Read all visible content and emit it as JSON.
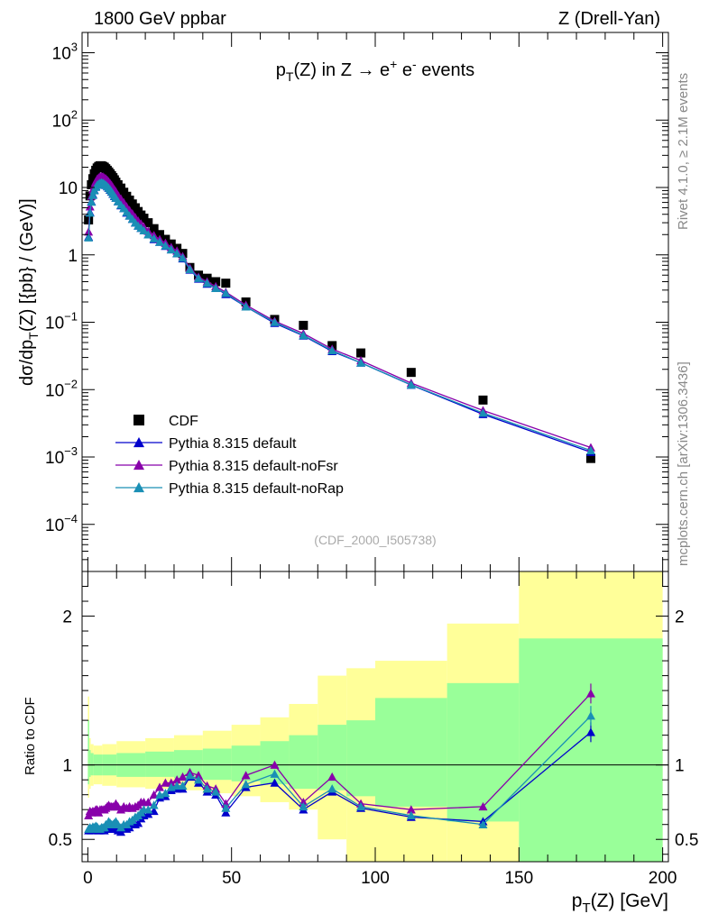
{
  "header": {
    "left": "1800 GeV ppbar",
    "right": "Z (Drell-Yan)"
  },
  "side_labels": {
    "rivet": "Rivet 4.1.0, ≥ 2.1M events",
    "mcplots": "mcplots.cern.ch [arXiv:1306.3436]"
  },
  "chart_data": {
    "type": "scatter",
    "title": "p_T(Z) in Z → e+ e- events",
    "analysis_id": "(CDF_2000_I505738)",
    "xlabel": "p_T(Z) [GeV]",
    "ylabel": "dσ/dp_T(Z) [{pb} / (GeV)]",
    "ratio_ylabel": "Ratio to CDF",
    "xlim": [
      -2,
      202
    ],
    "ylim_log": [
      2e-05,
      2000
    ],
    "ratio_ylim": [
      0.35,
      2.3
    ],
    "x_ticks": [
      0,
      50,
      100,
      150,
      200
    ],
    "y_ticks": [
      {
        "value": 1000,
        "base": "10",
        "exp": "3"
      },
      {
        "value": 100,
        "base": "10",
        "exp": "2"
      },
      {
        "value": 10,
        "base": "10",
        "exp": ""
      },
      {
        "value": 1,
        "base": "1",
        "exp": ""
      },
      {
        "value": 0.1,
        "base": "10",
        "exp": "−1"
      },
      {
        "value": 0.01,
        "base": "10",
        "exp": "−2"
      },
      {
        "value": 0.001,
        "base": "10",
        "exp": "−3"
      },
      {
        "value": 0.0001,
        "base": "10",
        "exp": "−4"
      }
    ],
    "ratio_ticks": [
      0.5,
      1,
      2
    ],
    "x": [
      0.25,
      0.75,
      1.25,
      1.75,
      2.25,
      2.75,
      3.25,
      3.75,
      4.25,
      4.75,
      5.25,
      5.75,
      6.25,
      6.75,
      7.25,
      7.75,
      8.25,
      8.75,
      9.25,
      9.75,
      10.5,
      11.5,
      12.5,
      13.5,
      14.5,
      15.5,
      16.5,
      17.5,
      18.5,
      19.5,
      21,
      23,
      25,
      27,
      29,
      31,
      33,
      35.5,
      38.5,
      41.5,
      44.5,
      48,
      55,
      65,
      75,
      85,
      95,
      112.5,
      137.5,
      175
    ],
    "series": [
      {
        "name": "CDF",
        "color": "#000000",
        "marker": "square",
        "values": [
          3.3,
          7.5,
          11,
          13.5,
          16,
          18,
          19.5,
          20.5,
          21,
          21,
          20.5,
          20,
          19,
          18,
          17,
          16,
          15,
          14,
          13,
          12,
          11,
          9.8,
          8.5,
          7.4,
          6.5,
          5.7,
          5.0,
          4.4,
          3.9,
          3.5,
          3.0,
          2.45,
          2.0,
          1.7,
          1.45,
          1.25,
          1.05,
          0.65,
          0.5,
          0.45,
          0.4,
          0.38,
          0.2,
          0.11,
          0.09,
          0.045,
          0.035,
          0.018,
          0.007,
          0.00095
        ]
      },
      {
        "name": "Pythia 8.315 default",
        "color": "#0000cc",
        "marker": "triangle",
        "values": [
          1.85,
          4.3,
          6.2,
          7.9,
          9.2,
          10.4,
          11.2,
          11.5,
          11.8,
          12.0,
          11.7,
          11.2,
          10.8,
          10.3,
          9.8,
          9.2,
          8.6,
          8.0,
          7.4,
          7.0,
          6.2,
          5.4,
          4.9,
          4.2,
          3.8,
          3.4,
          3.0,
          2.7,
          2.5,
          2.3,
          2.0,
          1.7,
          1.55,
          1.35,
          1.2,
          1.05,
          0.88,
          0.6,
          0.44,
          0.37,
          0.32,
          0.26,
          0.17,
          0.097,
          0.063,
          0.037,
          0.025,
          0.0117,
          0.0043,
          0.00118
        ],
        "ratios": [
          0.56,
          0.57,
          0.56,
          0.58,
          0.575,
          0.58,
          0.575,
          0.56,
          0.56,
          0.57,
          0.57,
          0.56,
          0.57,
          0.57,
          0.58,
          0.575,
          0.57,
          0.57,
          0.57,
          0.58,
          0.56,
          0.55,
          0.58,
          0.57,
          0.58,
          0.6,
          0.6,
          0.61,
          0.64,
          0.66,
          0.67,
          0.69,
          0.78,
          0.79,
          0.83,
          0.84,
          0.84,
          0.92,
          0.88,
          0.82,
          0.8,
          0.68,
          0.85,
          0.88,
          0.7,
          0.82,
          0.71,
          0.65,
          0.62,
          1.22
        ]
      },
      {
        "name": "Pythia 8.315 default-noFsr",
        "color": "#8800aa",
        "marker": "triangle",
        "values": [
          2.2,
          5.2,
          7.5,
          9.3,
          10.9,
          12.2,
          13.3,
          14.0,
          14.5,
          14.6,
          14.4,
          14.0,
          13.5,
          12.9,
          12.2,
          11.5,
          10.8,
          10.0,
          9.3,
          8.7,
          7.7,
          6.8,
          6.0,
          5.2,
          4.6,
          4.1,
          3.6,
          3.2,
          2.9,
          2.6,
          2.25,
          1.95,
          1.7,
          1.5,
          1.3,
          1.15,
          0.95,
          0.64,
          0.47,
          0.4,
          0.34,
          0.28,
          0.18,
          0.104,
          0.068,
          0.04,
          0.027,
          0.0125,
          0.0049,
          0.00138
        ],
        "ratios": [
          0.66,
          0.69,
          0.68,
          0.69,
          0.685,
          0.7,
          0.7,
          0.68,
          0.7,
          0.7,
          0.7,
          0.7,
          0.71,
          0.72,
          0.73,
          0.72,
          0.72,
          0.72,
          0.72,
          0.74,
          0.72,
          0.7,
          0.72,
          0.71,
          0.72,
          0.71,
          0.72,
          0.73,
          0.75,
          0.75,
          0.75,
          0.8,
          0.85,
          0.88,
          0.88,
          0.9,
          0.92,
          0.95,
          0.93,
          0.86,
          0.84,
          0.74,
          0.93,
          1.0,
          0.75,
          0.92,
          0.74,
          0.7,
          0.72,
          1.48
        ]
      },
      {
        "name": "Pythia 8.315 default-noRap",
        "color": "#1a8fb5",
        "marker": "triangle",
        "values": [
          1.8,
          4.2,
          6.1,
          7.7,
          9.0,
          10.1,
          10.9,
          11.3,
          11.6,
          11.8,
          11.6,
          11.3,
          10.9,
          10.4,
          9.9,
          9.3,
          8.7,
          8.1,
          7.5,
          7.0,
          6.2,
          5.5,
          4.9,
          4.3,
          3.8,
          3.4,
          3.0,
          2.7,
          2.5,
          2.3,
          2.0,
          1.75,
          1.55,
          1.37,
          1.2,
          1.05,
          0.9,
          0.61,
          0.45,
          0.38,
          0.32,
          0.27,
          0.17,
          0.1,
          0.064,
          0.038,
          0.025,
          0.0118,
          0.0045,
          0.00125
        ],
        "ratios": [
          0.57,
          0.58,
          0.57,
          0.585,
          0.58,
          0.59,
          0.585,
          0.57,
          0.57,
          0.58,
          0.58,
          0.58,
          0.6,
          0.6,
          0.62,
          0.61,
          0.6,
          0.6,
          0.61,
          0.62,
          0.6,
          0.58,
          0.6,
          0.6,
          0.62,
          0.63,
          0.65,
          0.66,
          0.68,
          0.7,
          0.7,
          0.73,
          0.8,
          0.81,
          0.85,
          0.86,
          0.86,
          0.93,
          0.9,
          0.84,
          0.82,
          0.71,
          0.87,
          0.94,
          0.72,
          0.84,
          0.72,
          0.66,
          0.6,
          1.33
        ]
      }
    ],
    "uncertainty_bands": [
      {
        "x0": 0,
        "x1": 0.5,
        "y1_lo": 0.87,
        "y1_hi": 1.3,
        "y2_lo": 0.78,
        "y2_hi": 1.46
      },
      {
        "x0": 0.5,
        "x1": 1,
        "y1_lo": 0.92,
        "y1_hi": 1.1,
        "y2_lo": 0.84,
        "y2_hi": 1.18
      },
      {
        "x0": 1,
        "x1": 2,
        "y1_lo": 0.93,
        "y1_hi": 1.08,
        "y2_lo": 0.86,
        "y2_hi": 1.14
      },
      {
        "x0": 2,
        "x1": 5,
        "y1_lo": 0.93,
        "y1_hi": 1.07,
        "y2_lo": 0.87,
        "y2_hi": 1.13
      },
      {
        "x0": 5,
        "x1": 10,
        "y1_lo": 0.93,
        "y1_hi": 1.07,
        "y2_lo": 0.86,
        "y2_hi": 1.14
      },
      {
        "x0": 10,
        "x1": 20,
        "y1_lo": 0.92,
        "y1_hi": 1.08,
        "y2_lo": 0.85,
        "y2_hi": 1.16
      },
      {
        "x0": 20,
        "x1": 30,
        "y1_lo": 0.92,
        "y1_hi": 1.09,
        "y2_lo": 0.84,
        "y2_hi": 1.18
      },
      {
        "x0": 30,
        "x1": 40,
        "y1_lo": 0.91,
        "y1_hi": 1.1,
        "y2_lo": 0.83,
        "y2_hi": 1.2
      },
      {
        "x0": 40,
        "x1": 50,
        "y1_lo": 0.9,
        "y1_hi": 1.11,
        "y2_lo": 0.81,
        "y2_hi": 1.23
      },
      {
        "x0": 50,
        "x1": 60,
        "y1_lo": 0.89,
        "y1_hi": 1.13,
        "y2_lo": 0.79,
        "y2_hi": 1.27
      },
      {
        "x0": 60,
        "x1": 70,
        "y1_lo": 0.87,
        "y1_hi": 1.16,
        "y2_lo": 0.75,
        "y2_hi": 1.32
      },
      {
        "x0": 70,
        "x1": 80,
        "y1_lo": 0.84,
        "y1_hi": 1.2,
        "y2_lo": 0.7,
        "y2_hi": 1.41
      },
      {
        "x0": 80,
        "x1": 90,
        "y1_lo": 0.83,
        "y1_hi": 1.27,
        "y2_lo": 0.5,
        "y2_hi": 1.6
      },
      {
        "x0": 90,
        "x1": 100,
        "y1_lo": 0.79,
        "y1_hi": 1.3,
        "y2_lo": 0.35,
        "y2_hi": 1.65
      },
      {
        "x0": 100,
        "x1": 125,
        "y1_lo": 0.72,
        "y1_hi": 1.45,
        "y2_lo": 0.35,
        "y2_hi": 1.7
      },
      {
        "x0": 125,
        "x1": 150,
        "y1_lo": 0.62,
        "y1_hi": 1.55,
        "y2_lo": 0.35,
        "y2_hi": 1.95
      },
      {
        "x0": 150,
        "x1": 200,
        "y1_lo": 0.35,
        "y1_hi": 1.85,
        "y2_lo": 0.35,
        "y2_hi": 2.3
      }
    ],
    "legend_position": "bottom-left"
  }
}
